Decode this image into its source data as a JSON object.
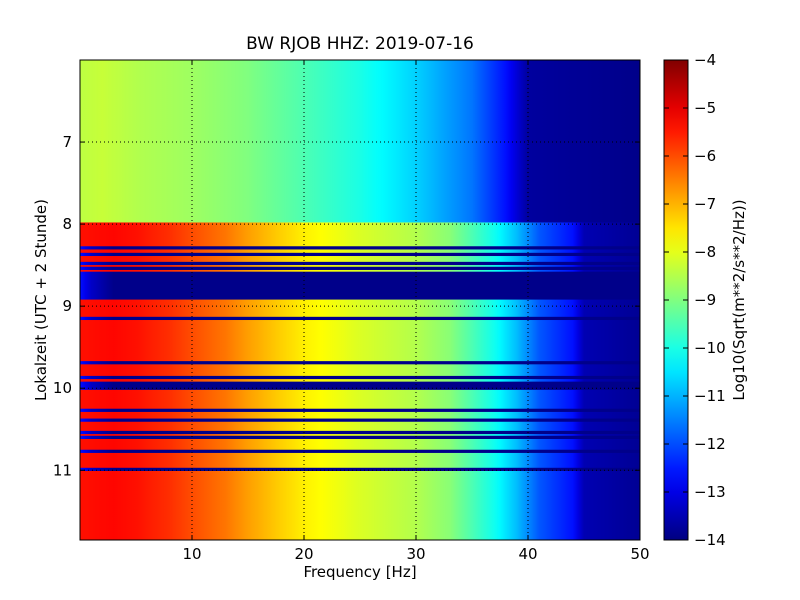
{
  "chart_data": {
    "type": "heatmap",
    "title": "BW RJOB HHZ: 2019-07-16",
    "xlabel": "Frequency [Hz]",
    "ylabel": "Lokalzeit (UTC + 2 Stunde)",
    "xlim": [
      0,
      50
    ],
    "ylim": [
      6.0,
      11.85
    ],
    "y_inverted": true,
    "x_ticks": [
      10,
      20,
      30,
      40,
      50
    ],
    "y_ticks": [
      7,
      8,
      9,
      10,
      11
    ],
    "grid": true,
    "grid_style": "dotted",
    "colormap": "jet",
    "colorbar": {
      "label": "Log10(Sqrt(m**2/s**2/Hz))",
      "range": [
        -14,
        -4
      ],
      "ticks": [
        -4,
        -5,
        -6,
        -7,
        -8,
        -9,
        -10,
        -11,
        -12,
        -13,
        -14
      ]
    },
    "time_segments": [
      {
        "start": 6.0,
        "end": 7.98,
        "level": "quiet"
      },
      {
        "start": 7.98,
        "end": 8.58,
        "level": "loud"
      },
      {
        "start": 8.58,
        "end": 8.92,
        "level": "gap"
      },
      {
        "start": 8.92,
        "end": 9.92,
        "level": "loud"
      },
      {
        "start": 9.92,
        "end": 10.02,
        "level": "gap"
      },
      {
        "start": 10.02,
        "end": 11.85,
        "level": "loud"
      }
    ],
    "gap_lines": [
      8.27,
      8.35,
      8.46,
      8.52,
      9.13,
      9.67,
      9.85,
      10.25,
      10.37,
      10.52,
      10.58,
      10.75,
      10.97
    ],
    "level_profiles": {
      "quiet": [
        [
          0,
          -8.4
        ],
        [
          2,
          -8.3
        ],
        [
          5,
          -8.5
        ],
        [
          10,
          -8.7
        ],
        [
          15,
          -9.0
        ],
        [
          20,
          -9.5
        ],
        [
          25,
          -10.0
        ],
        [
          30,
          -10.7
        ],
        [
          35,
          -11.6
        ],
        [
          38,
          -12.6
        ],
        [
          40,
          -13.7
        ],
        [
          50,
          -13.9
        ]
      ],
      "loud": [
        [
          0,
          -5.4
        ],
        [
          3,
          -5.3
        ],
        [
          5,
          -5.4
        ],
        [
          8,
          -5.7
        ],
        [
          10,
          -6.0
        ],
        [
          13,
          -6.4
        ],
        [
          15,
          -6.8
        ],
        [
          18,
          -7.3
        ],
        [
          20,
          -7.6
        ],
        [
          25,
          -8.1
        ],
        [
          30,
          -8.5
        ],
        [
          33,
          -8.9
        ],
        [
          35,
          -9.5
        ],
        [
          37,
          -10.1
        ],
        [
          39,
          -10.9
        ],
        [
          41,
          -11.9
        ],
        [
          44,
          -12.6
        ],
        [
          45,
          -13.5
        ],
        [
          50,
          -13.8
        ]
      ],
      "gap": [
        [
          0,
          -12.6
        ],
        [
          1,
          -13.3
        ],
        [
          3,
          -13.9
        ],
        [
          50,
          -13.9
        ]
      ]
    }
  }
}
